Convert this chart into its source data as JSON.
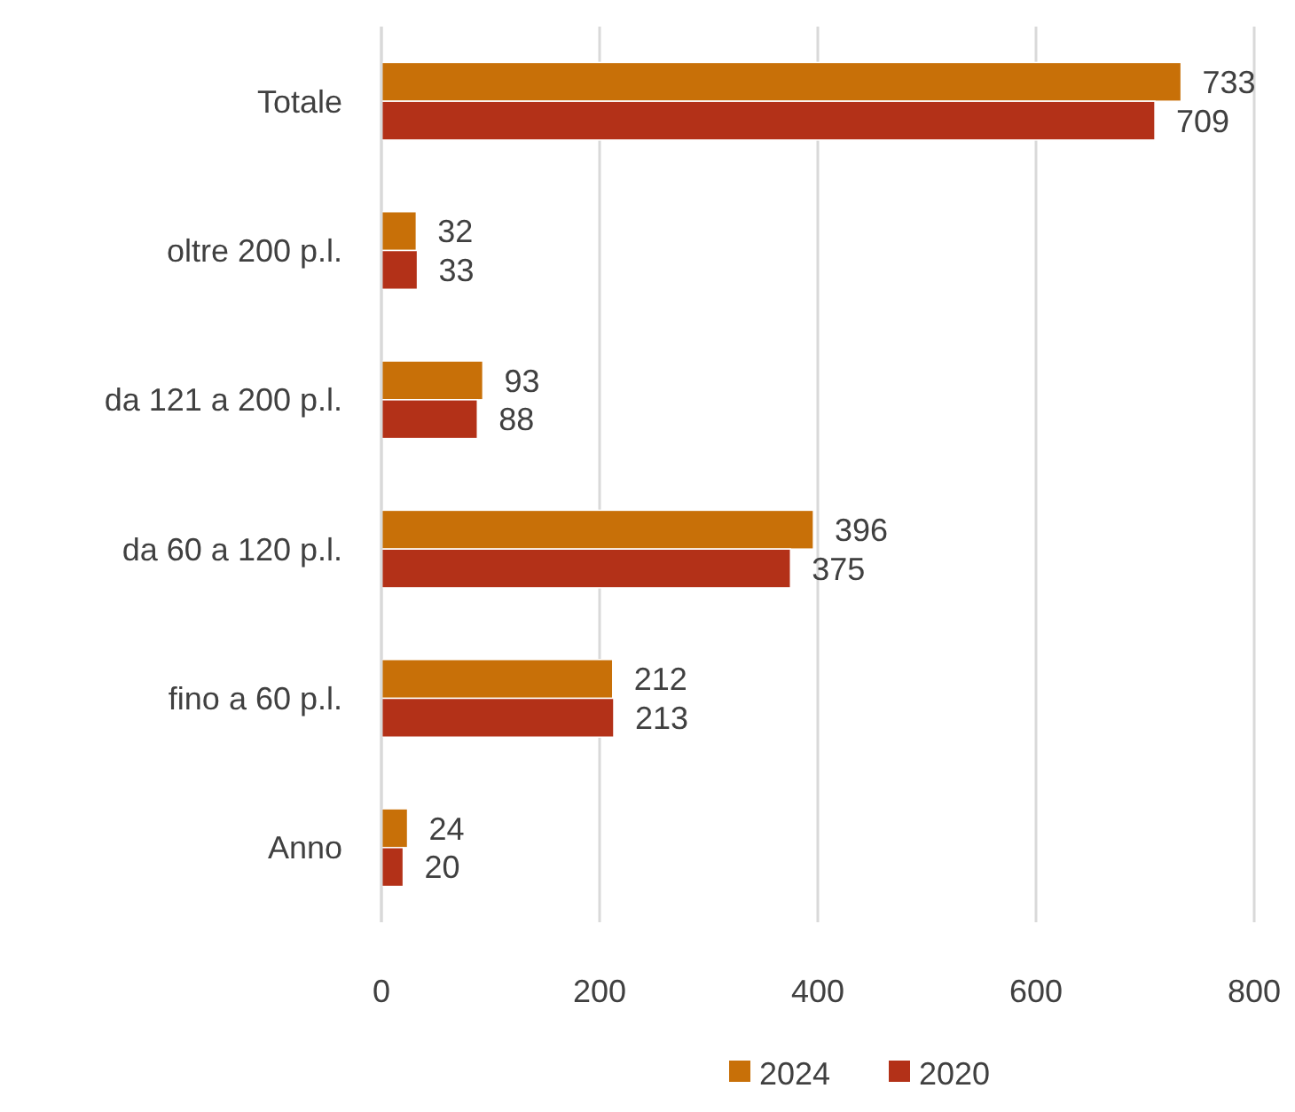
{
  "chart_data": {
    "type": "bar",
    "orientation": "horizontal",
    "categories": [
      "Totale",
      "oltre 200 p.l.",
      "da 121 a 200 p.l.",
      "da 60 a 120 p.l.",
      "fino a 60 p.l.",
      "Anno"
    ],
    "series": [
      {
        "name": "2024",
        "color": "#c87008",
        "values": [
          733,
          32,
          93,
          396,
          212,
          24
        ]
      },
      {
        "name": "2020",
        "color": "#b33118",
        "values": [
          709,
          33,
          88,
          375,
          213,
          20
        ]
      }
    ],
    "xlim": [
      0,
      800
    ],
    "xticks": [
      0,
      200,
      400,
      600,
      800
    ],
    "grid": "x",
    "legend": "bottom",
    "data_labels": true
  }
}
